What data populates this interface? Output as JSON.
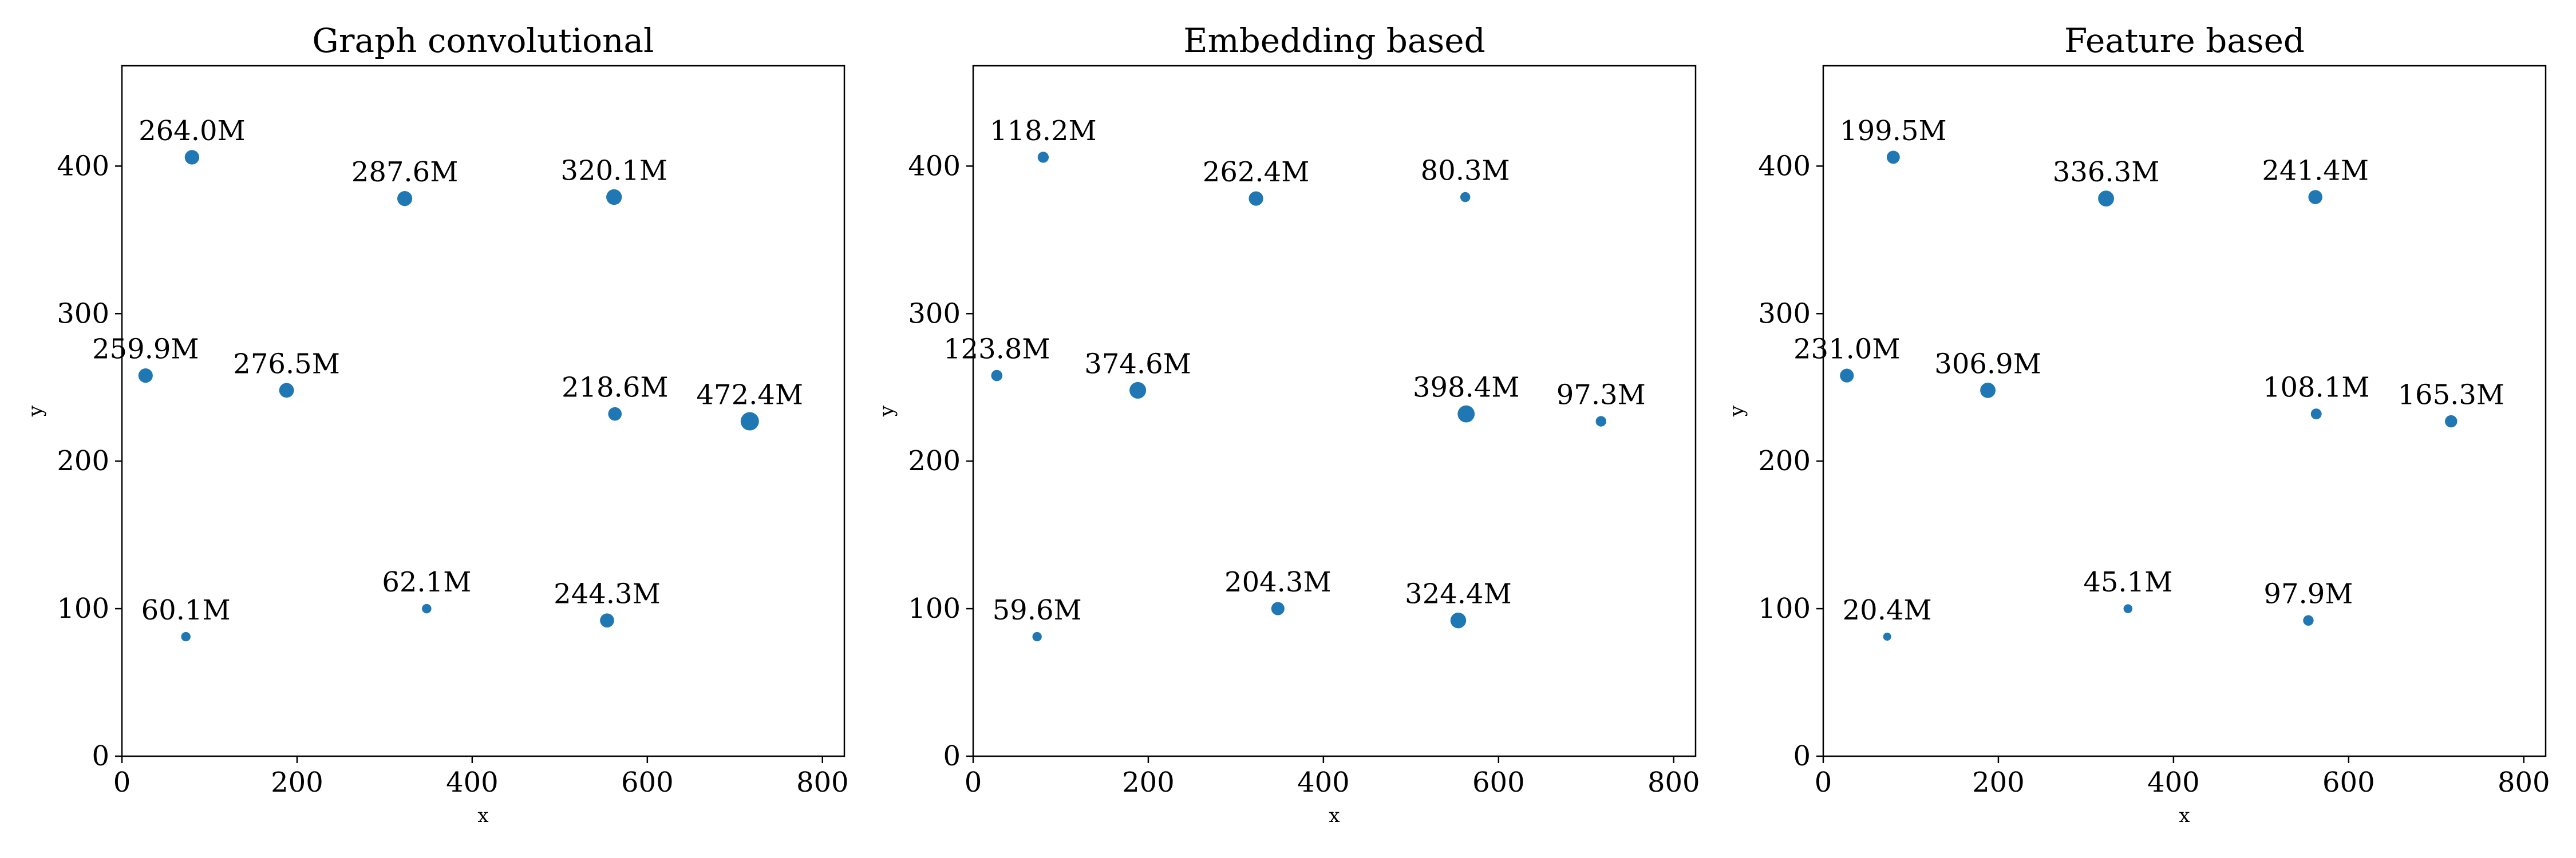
{
  "colors": {
    "marker": "#1f77b4",
    "axis": "#000000",
    "background": "#ffffff"
  },
  "chart_data": [
    {
      "type": "scatter",
      "title": "Graph convolutional",
      "xlabel": "x",
      "ylabel": "y",
      "xlim": [
        0,
        825
      ],
      "ylim": [
        0,
        468
      ],
      "xticks": [
        0,
        200,
        400,
        600,
        800
      ],
      "yticks": [
        0,
        100,
        200,
        300,
        400
      ],
      "grid": false,
      "points": [
        {
          "x": 80,
          "y": 406,
          "value": 264.0,
          "label": "264.0M"
        },
        {
          "x": 323,
          "y": 378,
          "value": 287.6,
          "label": "287.6M"
        },
        {
          "x": 562,
          "y": 379,
          "value": 320.1,
          "label": "320.1M"
        },
        {
          "x": 27,
          "y": 258,
          "value": 259.9,
          "label": "259.9M"
        },
        {
          "x": 188,
          "y": 248,
          "value": 276.5,
          "label": "276.5M"
        },
        {
          "x": 563,
          "y": 232,
          "value": 218.6,
          "label": "218.6M"
        },
        {
          "x": 717,
          "y": 227,
          "value": 472.4,
          "label": "472.4M"
        },
        {
          "x": 73,
          "y": 81,
          "value": 60.1,
          "label": "60.1M"
        },
        {
          "x": 348,
          "y": 100,
          "value": 62.1,
          "label": "62.1M"
        },
        {
          "x": 554,
          "y": 92,
          "value": 244.3,
          "label": "244.3M"
        }
      ]
    },
    {
      "type": "scatter",
      "title": "Embedding based",
      "xlabel": "x",
      "ylabel": "y",
      "xlim": [
        0,
        825
      ],
      "ylim": [
        0,
        468
      ],
      "xticks": [
        0,
        200,
        400,
        600,
        800
      ],
      "yticks": [
        0,
        100,
        200,
        300,
        400
      ],
      "grid": false,
      "points": [
        {
          "x": 80,
          "y": 406,
          "value": 118.2,
          "label": "118.2M"
        },
        {
          "x": 323,
          "y": 378,
          "value": 262.4,
          "label": "262.4M"
        },
        {
          "x": 562,
          "y": 379,
          "value": 80.3,
          "label": "80.3M"
        },
        {
          "x": 27,
          "y": 258,
          "value": 123.8,
          "label": "123.8M"
        },
        {
          "x": 188,
          "y": 248,
          "value": 374.6,
          "label": "374.6M"
        },
        {
          "x": 563,
          "y": 232,
          "value": 398.4,
          "label": "398.4M"
        },
        {
          "x": 717,
          "y": 227,
          "value": 97.3,
          "label": "97.3M"
        },
        {
          "x": 73,
          "y": 81,
          "value": 59.6,
          "label": "59.6M"
        },
        {
          "x": 348,
          "y": 100,
          "value": 204.3,
          "label": "204.3M"
        },
        {
          "x": 554,
          "y": 92,
          "value": 324.4,
          "label": "324.4M"
        }
      ]
    },
    {
      "type": "scatter",
      "title": "Feature based",
      "xlabel": "x",
      "ylabel": "y",
      "xlim": [
        0,
        825
      ],
      "ylim": [
        0,
        468
      ],
      "xticks": [
        0,
        200,
        400,
        600,
        800
      ],
      "yticks": [
        0,
        100,
        200,
        300,
        400
      ],
      "grid": false,
      "points": [
        {
          "x": 80,
          "y": 406,
          "value": 199.5,
          "label": "199.5M"
        },
        {
          "x": 323,
          "y": 378,
          "value": 336.3,
          "label": "336.3M"
        },
        {
          "x": 562,
          "y": 379,
          "value": 241.4,
          "label": "241.4M"
        },
        {
          "x": 27,
          "y": 258,
          "value": 231.0,
          "label": "231.0M"
        },
        {
          "x": 188,
          "y": 248,
          "value": 306.9,
          "label": "306.9M"
        },
        {
          "x": 563,
          "y": 232,
          "value": 108.1,
          "label": "108.1M"
        },
        {
          "x": 717,
          "y": 227,
          "value": 165.3,
          "label": "165.3M"
        },
        {
          "x": 73,
          "y": 81,
          "value": 20.4,
          "label": "20.4M"
        },
        {
          "x": 348,
          "y": 100,
          "value": 45.1,
          "label": "45.1M"
        },
        {
          "x": 554,
          "y": 92,
          "value": 97.9,
          "label": "97.9M"
        }
      ]
    }
  ]
}
